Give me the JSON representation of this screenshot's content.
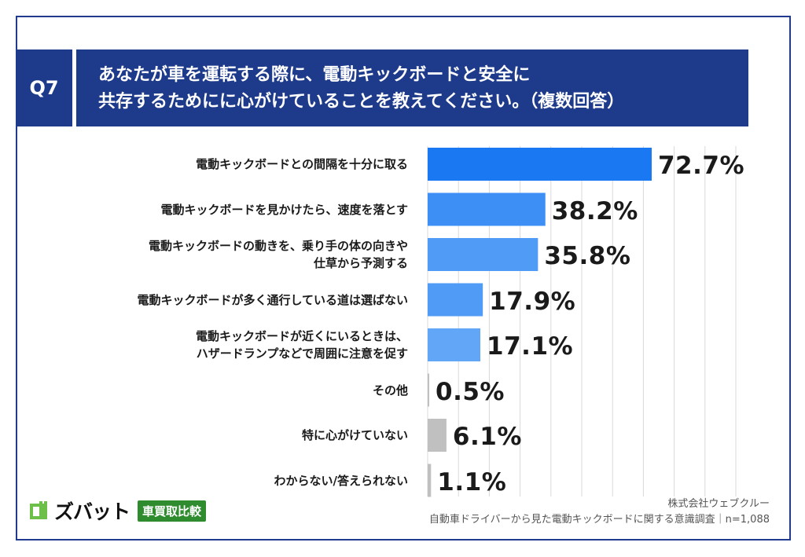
{
  "header": {
    "q_label": "Q7",
    "title_line1": "あなたが車を運転する際に、電動キックボードと安全に",
    "title_line2": "共存するためにに心がけていることを教えてください。（複数回答）"
  },
  "chart_data": {
    "type": "bar",
    "orientation": "horizontal",
    "title": "あなたが車を運転する際に、電動キックボードと安全に共存するためにに心がけていることを教えてください。（複数回答）",
    "xlabel": "",
    "ylabel": "",
    "xlim": [
      0,
      100
    ],
    "grid": true,
    "unit": "%",
    "categories": [
      [
        "電動キックボードとの間隔を十分に取る"
      ],
      [
        "電動キックボードを見かけたら、速度を落とす"
      ],
      [
        "電動キックボードの動きを、乗り手の体の向きや",
        "仕草から予測する"
      ],
      [
        "電動キックボードが多く通行している道は選ばない"
      ],
      [
        "電動キックボードが近くにいるときは、",
        "ハザードランプなどで周囲に注意を促す"
      ],
      [
        "その他"
      ],
      [
        "特に心がけていない"
      ],
      [
        "わからない/答えられない"
      ]
    ],
    "values": [
      72.7,
      38.2,
      35.8,
      17.9,
      17.1,
      0.5,
      6.1,
      1.1
    ],
    "value_labels": [
      "72.7%",
      "38.2%",
      "35.8%",
      "17.9%",
      "17.1%",
      "0.5%",
      "6.1%",
      "1.1%"
    ],
    "colors": [
      "#1a78f2",
      "#3d8ff5",
      "#4f9bf6",
      "#4f9bf6",
      "#62a6f7",
      "#c0c0c0",
      "#c0c0c0",
      "#c0c0c0"
    ]
  },
  "footer": {
    "logo_text": "ズバット",
    "logo_badge": "車買取比較",
    "source_line1": "株式会社ウェブクルー",
    "source_line2": "自動車ドライバーから見た電動キックボードに関する意識調査｜n=1,088"
  }
}
